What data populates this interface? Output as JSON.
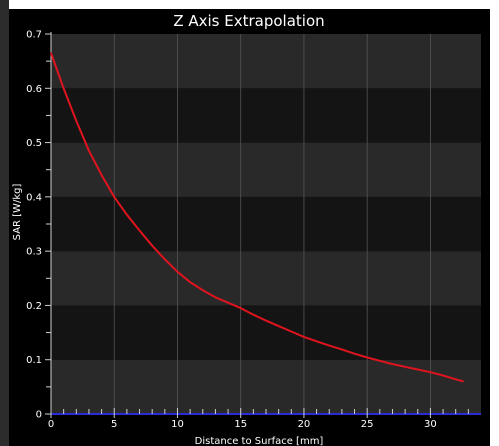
{
  "chart_data": {
    "type": "line",
    "title": "Z Axis Extrapolation",
    "xlabel": "Distance to Surface [mm]",
    "ylabel": "SAR [W/kg]",
    "xlim": [
      0,
      34
    ],
    "ylim": [
      0,
      0.7
    ],
    "xticks": [
      0,
      5,
      10,
      15,
      20,
      25,
      30
    ],
    "yticks": [
      0,
      0.1,
      0.2,
      0.3,
      0.4,
      0.5,
      0.6,
      0.7
    ],
    "xtick_labels": [
      "0",
      "5",
      "10",
      "15",
      "20",
      "25",
      "30"
    ],
    "ytick_labels": [
      "0",
      "0.1",
      "0.2",
      "0.3",
      "0.4",
      "0.5",
      "0.6",
      "0.7"
    ],
    "grid": true,
    "legend": "none",
    "series": [
      {
        "color": "#e0141e",
        "x": [
          0,
          1,
          2,
          3,
          4,
          5,
          6,
          7,
          8,
          9,
          10,
          11,
          12,
          13,
          14,
          15,
          16,
          17,
          18,
          19,
          20,
          21,
          22,
          23,
          24,
          25,
          26,
          27,
          28,
          29,
          30,
          31,
          32,
          32.6
        ],
        "y": [
          0.665,
          0.6,
          0.54,
          0.485,
          0.44,
          0.4,
          0.367,
          0.338,
          0.31,
          0.285,
          0.262,
          0.243,
          0.228,
          0.215,
          0.205,
          0.195,
          0.183,
          0.172,
          0.162,
          0.152,
          0.142,
          0.134,
          0.126,
          0.119,
          0.111,
          0.104,
          0.098,
          0.092,
          0.087,
          0.082,
          0.077,
          0.071,
          0.064,
          0.06
        ]
      }
    ],
    "minor_x_ticks": [
      0,
      1,
      2,
      3,
      4,
      5,
      6,
      7,
      8,
      9,
      10,
      11,
      12,
      13,
      14,
      15,
      16,
      17,
      18,
      19,
      20,
      21,
      22,
      23,
      24,
      25,
      26,
      27,
      28,
      29,
      30,
      31,
      32,
      33
    ],
    "minor_y_ticks": [
      0.05,
      0.15,
      0.25,
      0.35,
      0.45,
      0.55,
      0.65
    ]
  },
  "colors": {
    "panel_background": "#000000",
    "band_dark": "#141414",
    "band_light": "#292929",
    "grid_line": "#555555",
    "axis_line": "#d0d0d0",
    "baseline": "#2b2bd8",
    "text": "#ffffff"
  }
}
